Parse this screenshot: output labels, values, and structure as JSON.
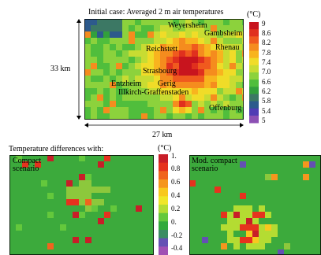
{
  "top_panel": {
    "title": "Initial case: Averaged 2 m air temperatures",
    "height_label": "33 km",
    "width_label": "27 km",
    "unit": "(°C)",
    "colorbar_ticks": [
      "9",
      "8.6",
      "8.2",
      "7.8",
      "7.4",
      "7.0",
      "6.6",
      "6.2",
      "5.8",
      "5.4",
      "5"
    ],
    "places": [
      "Weyersheim",
      "Gambsheim",
      "Reichstett",
      "Rhenau",
      "Strasbourg",
      "Entzheim",
      "Gerig",
      "Illkirch-Graffenstaden",
      "Offenburg"
    ]
  },
  "bottom_section": {
    "title": "Temperature differences with:",
    "unit": "(°C)",
    "colorbar_ticks": [
      "1.",
      "0.8",
      "0.6",
      "0.4",
      "0.2",
      "0.",
      "-0.2",
      "-0.4"
    ],
    "left_panel_label": [
      "Compact",
      "scenario"
    ],
    "right_panel_label": [
      "Mod. compact",
      "scenario"
    ]
  },
  "chart_data": [
    {
      "type": "heatmap",
      "title": "Initial case: Averaged 2 m air temperatures",
      "quantity": "Averaged 2 m air temperatures",
      "unit": "°C",
      "color_scale_range": [
        5,
        9
      ],
      "color_scale_ticks": [
        9,
        8.6,
        8.2,
        7.8,
        7.4,
        7.0,
        6.6,
        6.2,
        5.8,
        5.4,
        5
      ],
      "extent_labels": {
        "height": "33 km",
        "width": "27 km"
      },
      "place_labels": [
        "Weyersheim",
        "Gambsheim",
        "Reichstett",
        "Rhenau",
        "Strasbourg",
        "Entzheim",
        "Gerig",
        "Illkirch-Graffenstaden",
        "Offenburg"
      ]
    },
    {
      "type": "heatmap",
      "title": "Compact scenario",
      "quantity": "Temperature differences",
      "unit": "°C",
      "color_scale_range": [
        -0.4,
        1.0
      ],
      "color_scale_ticks": [
        1.0,
        0.8,
        0.6,
        0.4,
        0.2,
        0.0,
        -0.2,
        -0.4
      ]
    },
    {
      "type": "heatmap",
      "title": "Mod. compact scenario",
      "quantity": "Temperature differences",
      "unit": "°C",
      "color_scale_range": [
        -0.4,
        1.0
      ],
      "color_scale_ticks": [
        1.0,
        0.8,
        0.6,
        0.4,
        0.2,
        0.0,
        -0.2,
        -0.4
      ]
    }
  ]
}
